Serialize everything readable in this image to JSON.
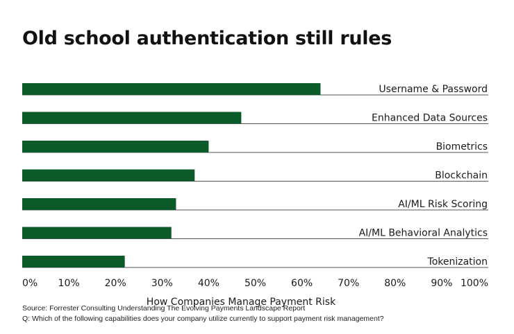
{
  "chart_data": {
    "type": "bar",
    "orientation": "horizontal",
    "title": "Old school authentication still rules",
    "categories": [
      "Username & Password",
      "Enhanced Data Sources",
      "Biometrics",
      "Blockchain",
      "AI/ML Risk Scoring",
      "AI/ML Behavioral Analytics",
      "Tokenization"
    ],
    "values": [
      64,
      47,
      40,
      37,
      33,
      32,
      22
    ],
    "xlabel": "How Companies Manage Payment Risk",
    "ylabel": "",
    "xlim": [
      0,
      100
    ],
    "xticks": [
      "0%",
      "10%",
      "20%",
      "30%",
      "40%",
      "50%",
      "60%",
      "70%",
      "80%",
      "90%",
      "100%"
    ],
    "bar_color": "#0b5a2a",
    "grid": false,
    "legend": "none"
  },
  "source": "Source: Forrester Consulting Understanding The Evolving Payments Landscape Report",
  "question": "Q: Which of the following capabilities does your company utilize currently to support payment risk management?"
}
